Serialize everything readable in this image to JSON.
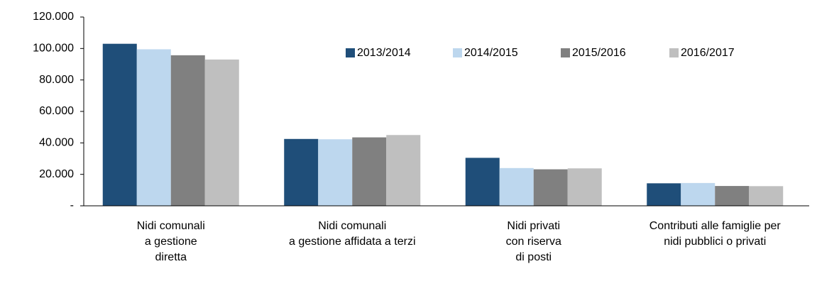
{
  "chart_data": {
    "type": "bar",
    "categories": [
      "Nidi comunali\na gestione\ndiretta",
      "Nidi comunali\na gestione affidata a terzi",
      "Nidi privati\ncon riserva\ndi posti",
      "Contributi alle famiglie per\nnidi pubblici o privati"
    ],
    "series": [
      {
        "name": "2013/2014",
        "color": "#1f4e79",
        "values": [
          103000,
          42500,
          30500,
          14300
        ]
      },
      {
        "name": "2014/2015",
        "color": "#bdd7ee",
        "values": [
          99500,
          42300,
          24000,
          14500
        ]
      },
      {
        "name": "2015/2016",
        "color": "#808080",
        "values": [
          95700,
          43500,
          23200,
          12600
        ]
      },
      {
        "name": "2016/2017",
        "color": "#bfbfbf",
        "values": [
          93000,
          45000,
          23800,
          12500
        ]
      }
    ],
    "ylim": [
      0,
      120000
    ],
    "yticks": [
      {
        "value": 0,
        "label": "-"
      },
      {
        "value": 20000,
        "label": "20.000"
      },
      {
        "value": 40000,
        "label": "40.000"
      },
      {
        "value": 60000,
        "label": "60.000"
      },
      {
        "value": 80000,
        "label": "80.000"
      },
      {
        "value": 100000,
        "label": "100.000"
      },
      {
        "value": 120000,
        "label": "120.000"
      }
    ],
    "grid": false,
    "legend": "top"
  }
}
